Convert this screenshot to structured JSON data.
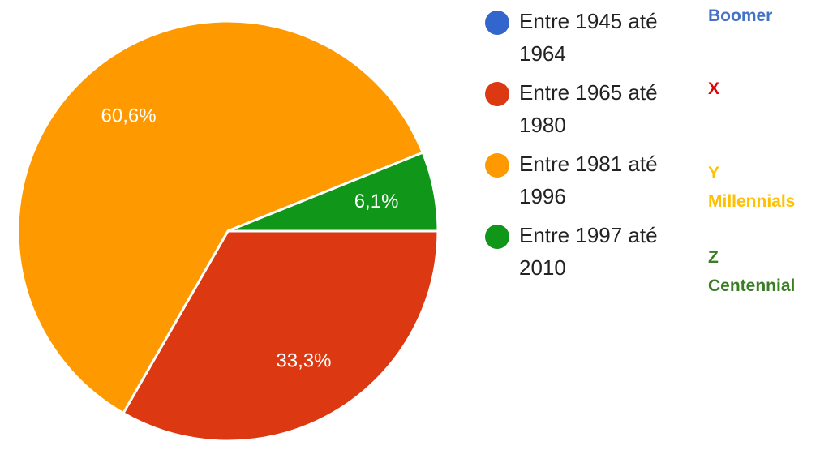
{
  "chart_data": {
    "type": "pie",
    "categories": [
      "Entre 1945 até 1964",
      "Entre 1965 até 1980",
      "Entre 1981 até 1996",
      "Entre 1997 até 2010"
    ],
    "values": [
      0,
      33.3,
      60.6,
      6.1
    ],
    "value_labels": [
      null,
      "33,3%",
      "60,6%",
      "6,1%"
    ],
    "colors": [
      "#3366cc",
      "#dc3912",
      "#ff9900",
      "#109618"
    ],
    "annotations": [
      [
        "Boomer"
      ],
      [
        "X"
      ],
      [
        "Y",
        "Millennials"
      ],
      [
        "Z",
        "Centennial"
      ]
    ],
    "annotation_colors": [
      "#4472c4",
      "#e00000",
      "#ffc000",
      "#3a7d22"
    ]
  }
}
